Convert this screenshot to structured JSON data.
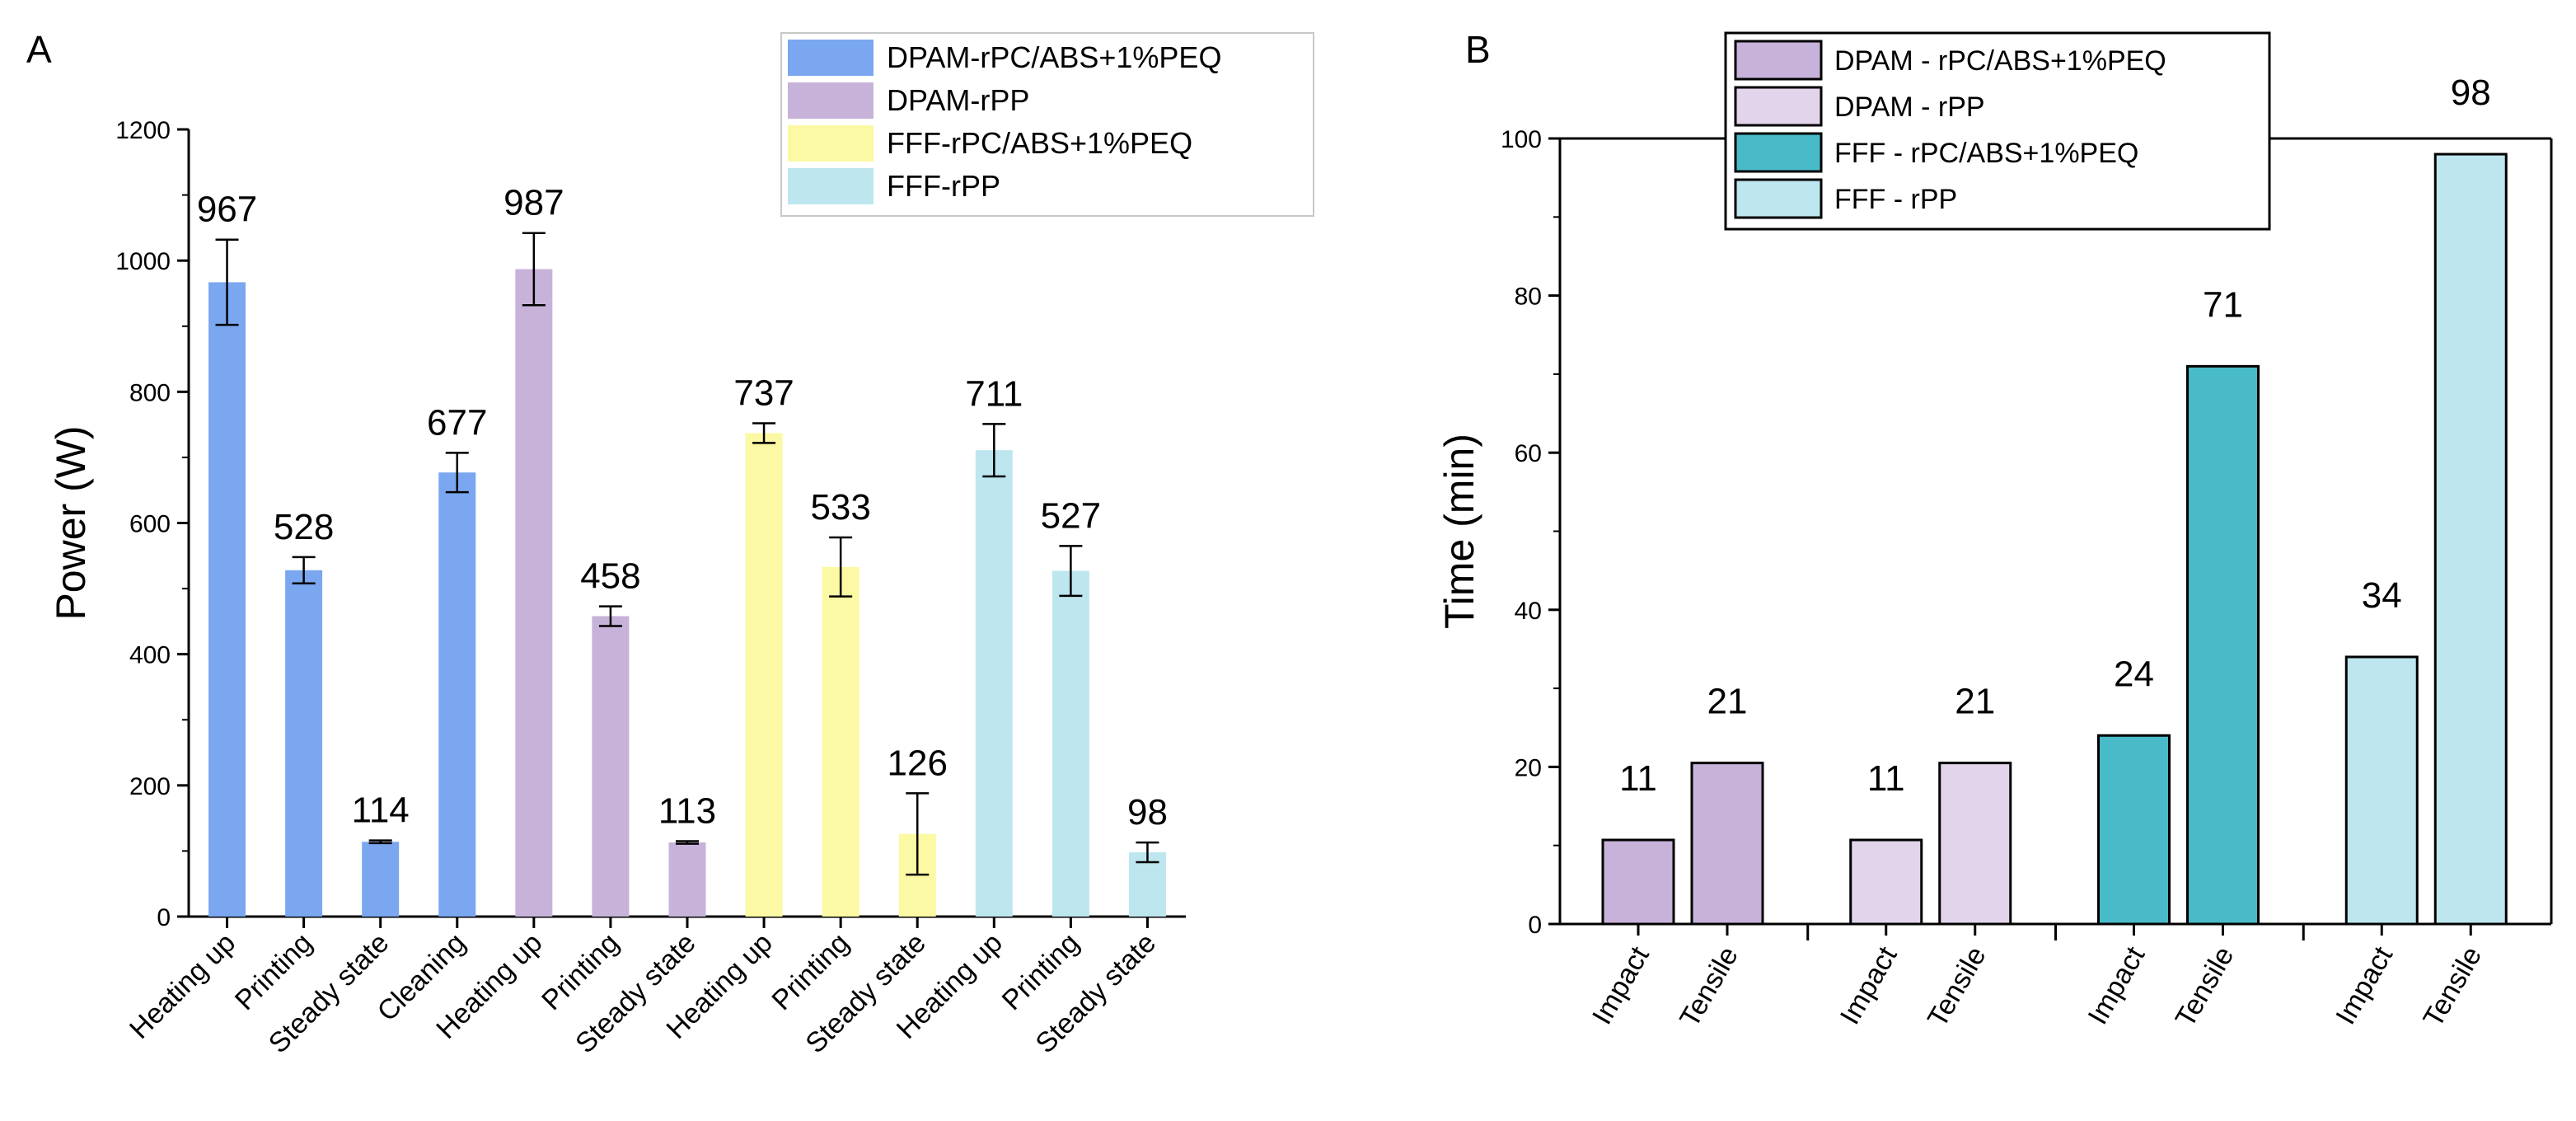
{
  "chart_data": [
    {
      "panel": "A",
      "type": "bar",
      "ylabel": "Power (W)",
      "xlabel": "",
      "ylim": [
        0,
        1200
      ],
      "yticks": [
        0,
        200,
        400,
        600,
        800,
        1000,
        1200
      ],
      "legend_position": "top-right",
      "legend": [
        {
          "name": "DPAM-rPC/ABS+1%PEQ",
          "color": "#7ba7f0"
        },
        {
          "name": "DPAM-rPP",
          "color": "#c7b2da"
        },
        {
          "name": "FFF-rPC/ABS+1%PEQ",
          "color": "#fbf9a3"
        },
        {
          "name": "FFF-rPP",
          "color": "#bde6ef"
        }
      ],
      "categories": [
        "Heating up",
        "Printing",
        "Steady state",
        "Cleaning",
        "Heating up",
        "Printing",
        "Steady state",
        "Heating up",
        "Printing",
        "Steady state",
        "Heating up",
        "Printing",
        "Steady state"
      ],
      "values": [
        967,
        528,
        114,
        677,
        987,
        458,
        113,
        737,
        533,
        126,
        711,
        527,
        98
      ],
      "labels": [
        "967",
        "528",
        "114",
        "677",
        "987",
        "458",
        "113",
        "737",
        "533",
        "126",
        "711",
        "527",
        "98"
      ],
      "errors": [
        65,
        20,
        2,
        30,
        55,
        15,
        2,
        15,
        45,
        62,
        40,
        38,
        15
      ],
      "series_index": [
        0,
        0,
        0,
        0,
        1,
        1,
        1,
        2,
        2,
        2,
        3,
        3,
        3
      ]
    },
    {
      "panel": "B",
      "type": "bar",
      "ylabel": "Time (min)",
      "xlabel": "",
      "ylim": [
        0,
        100
      ],
      "yticks": [
        0,
        20,
        40,
        60,
        80,
        100
      ],
      "legend_position": "top-left",
      "legend": [
        {
          "name": "DPAM - rPC/ABS+1%PEQ",
          "color": "#c7b2da"
        },
        {
          "name": "DPAM - rPP",
          "color": "#e2d4ea"
        },
        {
          "name": "FFF - rPC/ABS+1%PEQ",
          "color": "#49bac8"
        },
        {
          "name": "FFF - rPP",
          "color": "#bde6ef"
        }
      ],
      "categories": [
        "Impact",
        "Tensile",
        "Impact",
        "Tensile",
        "Impact",
        "Tensile",
        "Impact",
        "Tensile"
      ],
      "values": [
        10.7,
        20.5,
        10.7,
        20.5,
        24,
        71,
        34,
        98
      ],
      "labels": [
        "11",
        "21",
        "11",
        "21",
        "24",
        "71",
        "34",
        "98"
      ],
      "series_index": [
        0,
        0,
        1,
        1,
        2,
        2,
        3,
        3
      ]
    }
  ],
  "panel_letters": {
    "a": "A",
    "b": "B"
  }
}
